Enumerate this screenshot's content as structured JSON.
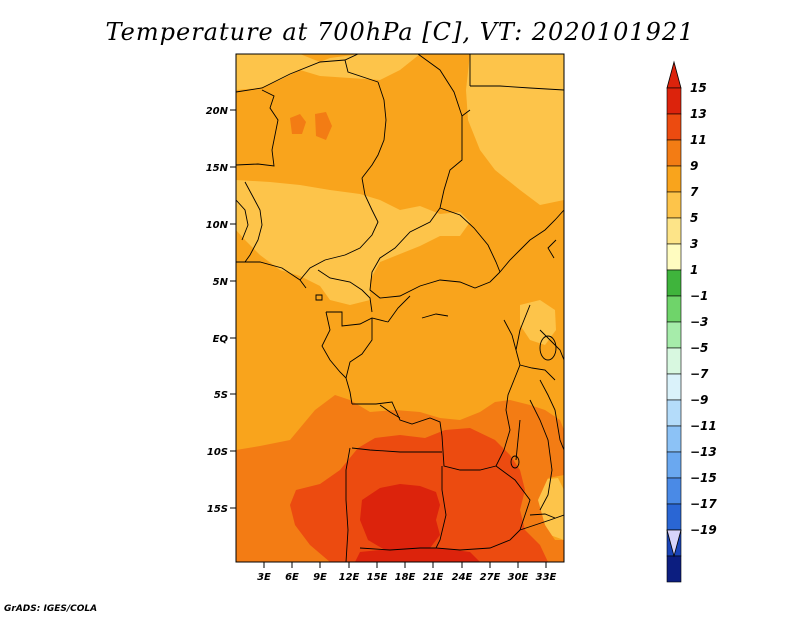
{
  "title": "Temperature at 700hPa [C], VT: 2020101921",
  "credit": "GrADS: IGES/COLA",
  "map": {
    "lat_labels": [
      "20N",
      "15N",
      "10N",
      "5N",
      "EQ",
      "5S",
      "10S",
      "15S"
    ],
    "lon_labels": [
      "3E",
      "6E",
      "9E",
      "12E",
      "15E",
      "18E",
      "21E",
      "24E",
      "27E",
      "30E",
      "33E"
    ],
    "colors": {
      "c7_9": "#fdc44a",
      "c9_11": "#f9a41c",
      "c11_13": "#f37c14",
      "c13_15": "#ec4b10",
      "c15_plus": "#dc230c"
    }
  },
  "colorbar": {
    "labels": [
      "15",
      "13",
      "11",
      "9",
      "7",
      "5",
      "3",
      "1",
      "−1",
      "−3",
      "−5",
      "−7",
      "−9",
      "−11",
      "−13",
      "−15",
      "−17",
      "−19"
    ],
    "colors": [
      "#dc230c",
      "#ec4b10",
      "#f37c14",
      "#f9a41c",
      "#fdc44a",
      "#fde488",
      "#fffcc0",
      "#3fb43c",
      "#6fd46a",
      "#a6ecaa",
      "#d8f8e0",
      "#daf2fa",
      "#b4dcfa",
      "#8cc2f6",
      "#6aa8f0",
      "#4a8ae6",
      "#2a66d4",
      "#1a44b8",
      "#0c1e80"
    ],
    "over_color": "#dc230c",
    "under_color": "#d8d4fa"
  }
}
